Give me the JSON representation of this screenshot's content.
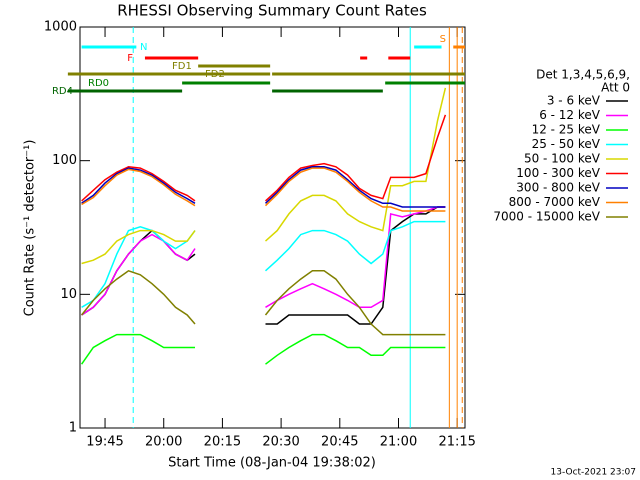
{
  "chart_data": {
    "type": "line",
    "title": "RHESSI Observing Summary Count Rates",
    "x_label": "Start Time (08-Jan-04 19:38:02)",
    "y_label": "Count Rate (s⁻¹ detector⁻¹)",
    "legend_title": [
      "Det 1,3,4,5,6,9,",
      "Att 0"
    ],
    "footer": "13-Oct-2021 23:07",
    "log_y": true,
    "xlim": [
      1178.6,
      1277
    ],
    "xticks": [
      {
        "value": 1185,
        "label": "19:45"
      },
      {
        "value": 1200,
        "label": "20:00"
      },
      {
        "value": 1215,
        "label": "20:15"
      },
      {
        "value": 1230,
        "label": "20:30"
      },
      {
        "value": 1245,
        "label": "20:45"
      },
      {
        "value": 1260,
        "label": "21:00"
      },
      {
        "value": 1275,
        "label": "21:15"
      }
    ],
    "ylim": [
      1,
      1000
    ],
    "yticks": [
      1,
      10,
      100,
      1000
    ],
    "x": [
      1179,
      1182,
      1185,
      1188,
      1191,
      1194,
      1197,
      1200,
      1203,
      1206,
      1208,
      1217,
      1226,
      1229,
      1232,
      1235,
      1238,
      1241,
      1244,
      1247,
      1250,
      1253,
      1256,
      1258,
      1261,
      1264,
      1267,
      1270,
      1272
    ],
    "series": [
      {
        "name": "3 - 6 keV",
        "color": "#000000",
        "values": [
          7,
          8,
          10,
          15,
          20,
          25,
          30,
          25,
          20,
          18,
          20,
          null,
          6,
          6,
          7,
          7,
          7,
          7,
          7,
          7,
          6,
          6,
          8,
          30,
          35,
          40,
          40,
          45,
          45
        ]
      },
      {
        "name": "6 - 12 keV",
        "color": "#ff00ff",
        "values": [
          7,
          8,
          10,
          15,
          20,
          25,
          28,
          25,
          20,
          18,
          22,
          null,
          8,
          9,
          10,
          11,
          12,
          11,
          10,
          9,
          8,
          8,
          9,
          40,
          38,
          40,
          42,
          45,
          45
        ]
      },
      {
        "name": "12 - 25 keV",
        "color": "#00ff00",
        "values": [
          3,
          4,
          4.5,
          5,
          5,
          5,
          4.5,
          4,
          4,
          4,
          4,
          null,
          3,
          3.5,
          4,
          4.5,
          5,
          5,
          4.5,
          4,
          4,
          3.5,
          3.5,
          4,
          4,
          4,
          4,
          4,
          4
        ]
      },
      {
        "name": "25 - 50 keV",
        "color": "#00ffff",
        "values": [
          8,
          9,
          12,
          20,
          30,
          32,
          30,
          25,
          22,
          25,
          30,
          null,
          15,
          18,
          22,
          28,
          30,
          30,
          28,
          25,
          20,
          17,
          20,
          30,
          32,
          35,
          35,
          35,
          35
        ]
      },
      {
        "name": "50 - 100 keV",
        "color": "#d8d800",
        "values": [
          17,
          18,
          20,
          25,
          28,
          30,
          30,
          28,
          25,
          25,
          30,
          null,
          25,
          30,
          40,
          50,
          55,
          55,
          50,
          40,
          35,
          32,
          30,
          65,
          65,
          70,
          70,
          200,
          350
        ]
      },
      {
        "name": "100 - 300 keV",
        "color": "#ff0000",
        "values": [
          50,
          60,
          72,
          82,
          90,
          88,
          80,
          70,
          60,
          55,
          50,
          null,
          50,
          60,
          75,
          88,
          92,
          95,
          90,
          78,
          62,
          55,
          52,
          75,
          75,
          75,
          80,
          150,
          220
        ]
      },
      {
        "name": "300 - 800 keV",
        "color": "#0000c0",
        "values": [
          48,
          55,
          68,
          80,
          88,
          85,
          78,
          68,
          58,
          52,
          48,
          null,
          48,
          58,
          72,
          85,
          90,
          90,
          85,
          72,
          60,
          52,
          48,
          48,
          45,
          45,
          45,
          45,
          45
        ]
      },
      {
        "name": "800 - 7000 keV",
        "color": "#ff8000",
        "values": [
          47,
          53,
          65,
          78,
          86,
          83,
          76,
          66,
          56,
          50,
          46,
          null,
          46,
          56,
          70,
          82,
          88,
          88,
          82,
          70,
          58,
          50,
          45,
          45,
          42,
          42,
          42,
          42,
          42
        ]
      },
      {
        "name": "7000 - 15000 keV",
        "color": "#808000",
        "values": [
          7,
          9,
          11,
          13,
          15,
          14,
          12,
          10,
          8,
          7,
          6,
          null,
          7,
          9,
          11,
          13,
          15,
          15,
          13,
          10,
          8,
          6,
          5,
          5,
          5,
          5,
          5,
          5,
          5
        ]
      }
    ],
    "flags": [
      {
        "label": "N",
        "color": "#00ffff",
        "segments": [
          [
            1179,
            1193
          ],
          [
            1264,
            1271
          ]
        ]
      },
      {
        "label": "F",
        "color": "#ff0000",
        "segments": [
          [
            1195.2,
            1208.8
          ],
          [
            1250.2,
            1252
          ],
          [
            1257.4,
            1263
          ]
        ]
      },
      {
        "label": "FD1",
        "color": "#808000",
        "segments": [
          [
            1208.8,
            1227.2
          ]
        ]
      },
      {
        "label": "FD2",
        "color": "#808000",
        "segments": [
          [
            1175.5,
            1227.2
          ],
          [
            1227.7,
            1277
          ]
        ]
      },
      {
        "label": "RD0",
        "color": "#008000",
        "segments": [
          [
            1204.7,
            1227.2
          ],
          [
            1256.6,
            1277
          ]
        ]
      },
      {
        "label": "RD4",
        "color": "#006400",
        "segments": [
          [
            1175.5,
            1204.7
          ],
          [
            1227.7,
            1256
          ]
        ]
      },
      {
        "label": "S",
        "color": "#ff8000",
        "segments": [
          [
            1274,
            1277
          ]
        ]
      }
    ],
    "markers": [
      {
        "x": 1192.2,
        "color": "#00ffff",
        "dashed": true
      },
      {
        "x": 1263,
        "color": "#00ffff",
        "dashed": false
      },
      {
        "x": 1273,
        "color": "#ff8000",
        "dashed": false
      },
      {
        "x": 1275,
        "color": "#ff8000",
        "dashed": false
      },
      {
        "x": 1276.3,
        "color": "#ff8000",
        "dashed": true
      }
    ]
  }
}
